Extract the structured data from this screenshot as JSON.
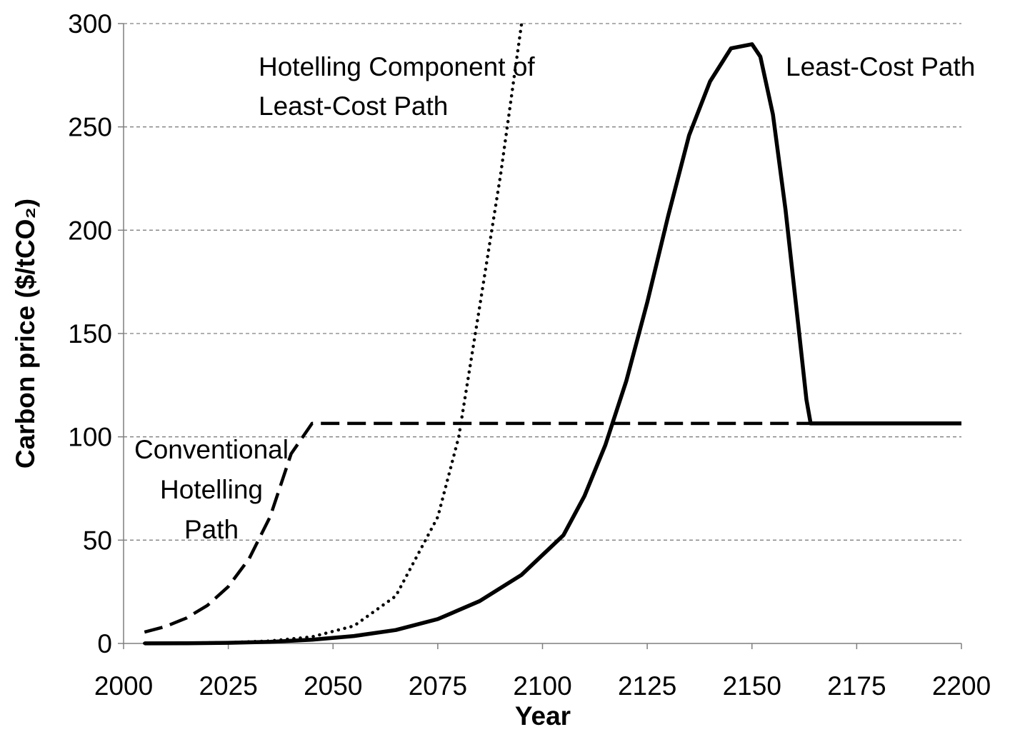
{
  "chart_data": {
    "type": "line",
    "title": "",
    "xlabel": "Year",
    "ylabel": "Carbon price ($/tCO₂)",
    "xlim": [
      2000,
      2200
    ],
    "ylim": [
      0,
      300
    ],
    "x_ticks": [
      "2000",
      "2025",
      "2050",
      "2075",
      "2100",
      "2125",
      "2150",
      "2175",
      "2200"
    ],
    "y_ticks": [
      "0",
      "50",
      "100",
      "150",
      "200",
      "250",
      "300"
    ],
    "grid": "horizontal dashed",
    "annotations": [
      {
        "lines": [
          "Hotelling Component of",
          "Least-Cost Path"
        ]
      },
      {
        "lines": [
          "Least-Cost Path"
        ]
      },
      {
        "lines": [
          "Conventional",
          "Hotelling",
          "Path"
        ]
      }
    ],
    "series": [
      {
        "label": "Conventional Hotelling Path",
        "style": "dashed",
        "x": [
          2005,
          2010,
          2015,
          2020,
          2025,
          2030,
          2035,
          2040,
          2045,
          2047,
          2050,
          2075,
          2100,
          2125,
          2150,
          2175,
          2200
        ],
        "y": [
          5.5,
          8.2,
          12.3,
          18.4,
          27.5,
          41.1,
          61.4,
          91.8,
          106.5,
          106.5,
          106.5,
          106.5,
          106.5,
          106.5,
          106.5,
          106.5,
          106.5
        ]
      },
      {
        "label": "Hotelling Component of Least-Cost Path",
        "style": "dotted",
        "x": [
          2005,
          2015,
          2025,
          2035,
          2045,
          2055,
          2065,
          2075,
          2080,
          2085,
          2090,
          2095,
          2100,
          2105,
          2110,
          2113
        ],
        "y": [
          0.06,
          0.17,
          0.45,
          1.2,
          3.2,
          8.5,
          23,
          61.2,
          99.9,
          163,
          227,
          300,
          300,
          300,
          300,
          300
        ]
      },
      {
        "label": "Least-Cost Path",
        "style": "solid",
        "x": [
          2005,
          2015,
          2025,
          2035,
          2045,
          2055,
          2065,
          2075,
          2085,
          2095,
          2105,
          2110,
          2115,
          2120,
          2125,
          2130,
          2135,
          2140,
          2145,
          2150,
          2152,
          2155,
          2158,
          2161,
          2163,
          2164,
          2165,
          2175,
          2200
        ],
        "y": [
          0.05,
          0.12,
          0.3,
          0.8,
          1.8,
          3.6,
          6.5,
          11.8,
          20.5,
          33.2,
          52.4,
          71.3,
          96,
          127,
          165,
          207,
          246,
          272,
          288,
          290,
          284,
          256,
          210,
          155,
          118,
          106.5,
          106.5,
          106.5,
          106.5
        ]
      }
    ]
  }
}
